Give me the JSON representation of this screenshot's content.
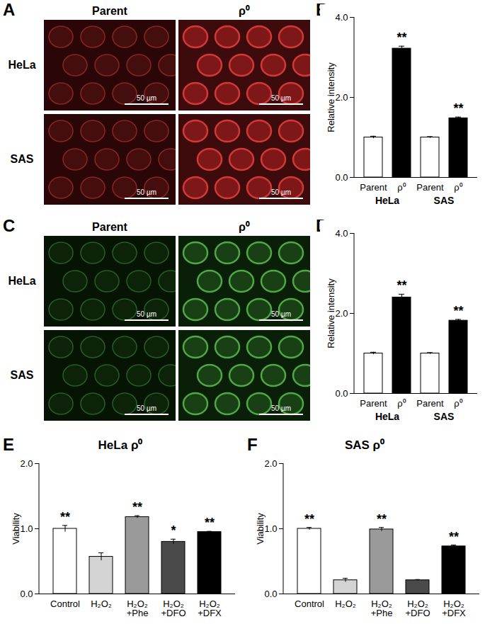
{
  "chart_data": [
    {
      "type": "image_grid",
      "panel": "A",
      "columns": [
        "Parent",
        "ρ⁰"
      ],
      "rows": [
        "HeLa",
        "SAS"
      ],
      "scale_bar": "50 µm",
      "color": "red"
    },
    {
      "type": "bar",
      "panel": "B",
      "categories": [
        "Parent",
        "ρ⁰",
        "Parent",
        "ρ⁰"
      ],
      "groups": [
        "HeLa",
        "SAS"
      ],
      "values": [
        1,
        3.22,
        1,
        1.48
      ],
      "errors": [
        0.03,
        0.06,
        0.02,
        0.03
      ],
      "annotations": [
        null,
        "**",
        null,
        "**"
      ],
      "colors": [
        "#ffffff",
        "#000000",
        "#ffffff",
        "#000000"
      ],
      "ylabel": "Relative intensity",
      "ylim": [
        0,
        4
      ],
      "yticks": [
        0,
        2,
        4
      ]
    },
    {
      "type": "image_grid",
      "panel": "C",
      "columns": [
        "Parent",
        "ρ⁰"
      ],
      "rows": [
        "HeLa",
        "SAS"
      ],
      "scale_bar": "50 µm",
      "color": "green"
    },
    {
      "type": "bar",
      "panel": "D",
      "categories": [
        "Parent",
        "ρ⁰",
        "Parent",
        "ρ⁰"
      ],
      "groups": [
        "HeLa",
        "SAS"
      ],
      "values": [
        1,
        2.4,
        1,
        1.82
      ],
      "errors": [
        0.03,
        0.08,
        0.02,
        0.03
      ],
      "annotations": [
        null,
        "**",
        null,
        "**"
      ],
      "colors": [
        "#ffffff",
        "#000000",
        "#ffffff",
        "#000000"
      ],
      "ylabel": "Relative intensity",
      "ylim": [
        0,
        4
      ],
      "yticks": [
        0,
        2,
        4
      ]
    },
    {
      "type": "bar",
      "panel": "E",
      "title": "HeLa ρ⁰",
      "categories": [
        "Control",
        "H₂O₂",
        "H₂O₂\n+Phe",
        "H₂O₂\n+DFO",
        "H₂O₂\n+DFX"
      ],
      "values": [
        1.0,
        0.57,
        1.18,
        0.8,
        0.95
      ],
      "errors": [
        0.05,
        0.06,
        0.02,
        0.04,
        0.01
      ],
      "annotations": [
        "**",
        null,
        "**",
        "*",
        "**"
      ],
      "colors": [
        "#ffffff",
        "#d4d4d4",
        "#9a9a9a",
        "#4a4a4a",
        "#000000"
      ],
      "ylabel": "Viability",
      "ylim": [
        0,
        2
      ],
      "yticks": [
        0,
        1,
        2
      ]
    },
    {
      "type": "bar",
      "panel": "F",
      "title": "SAS ρ⁰",
      "categories": [
        "Control",
        "H₂O₂",
        "H₂O₂\n+Phe",
        "H₂O₂\n+DFO",
        "H₂O₂\n+DFX"
      ],
      "values": [
        1.0,
        0.21,
        0.99,
        0.21,
        0.73
      ],
      "errors": [
        0.02,
        0.03,
        0.03,
        0.01,
        0.02
      ],
      "annotations": [
        "**",
        null,
        "**",
        null,
        "**"
      ],
      "colors": [
        "#ffffff",
        "#d4d4d4",
        "#9a9a9a",
        "#4a4a4a",
        "#000000"
      ],
      "ylabel": "Viability",
      "ylim": [
        0,
        2
      ],
      "yticks": [
        0,
        1,
        2
      ]
    }
  ]
}
